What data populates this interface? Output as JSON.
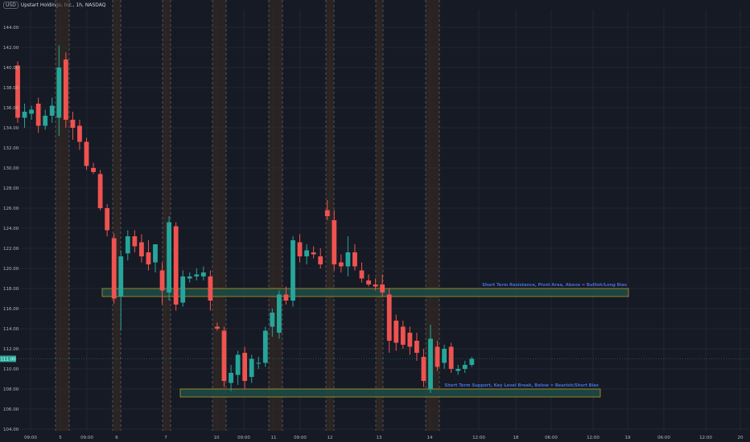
{
  "header": {
    "currency": "USD",
    "symbol": "Upstart Holdings, Inc., 1h, NASDAQ"
  },
  "colors": {
    "background": "#161a25",
    "grid": "#232733",
    "up": "#26a69a",
    "down": "#ef5350",
    "zone_fill": "#1d4a45",
    "zone_border": "#c9a227",
    "zone_text": "#3f6fd8",
    "session_shade": "#3a2e22",
    "axis_text": "#b2b5be",
    "price_label_bg": "#26a69a"
  },
  "chart_data": {
    "type": "candlestick",
    "interval": "1h",
    "ylim": [
      104,
      146
    ],
    "yticks": [
      "144.00",
      "142.00",
      "140.00",
      "138.00",
      "136.00",
      "134.00",
      "132.00",
      "130.00",
      "128.00",
      "126.00",
      "124.00",
      "122.00",
      "120.00",
      "118.00",
      "116.00",
      "114.00",
      "112.00",
      "110.00",
      "108.00",
      "106.00",
      "104.00"
    ],
    "x_ticks": [
      "09:00",
      "5",
      "09:00",
      "6",
      "7",
      "10",
      "09:00",
      "11",
      "09:00",
      "12",
      "13",
      "14",
      "12:00",
      "18",
      "06:00",
      "12:00",
      "19",
      "06:00",
      "12:00",
      "20"
    ],
    "last_price": 111.0,
    "last_price_label": "111.00",
    "grid": true,
    "candles": [
      {
        "o": 140.2,
        "h": 140.6,
        "l": 134.5,
        "c": 135.0
      },
      {
        "o": 135.0,
        "h": 136.4,
        "l": 134.0,
        "c": 135.6
      },
      {
        "o": 135.4,
        "h": 136.2,
        "l": 134.8,
        "c": 135.8
      },
      {
        "o": 136.4,
        "h": 137.0,
        "l": 133.5,
        "c": 134.2
      },
      {
        "o": 134.2,
        "h": 135.8,
        "l": 133.8,
        "c": 135.2
      },
      {
        "o": 135.2,
        "h": 137.0,
        "l": 134.5,
        "c": 136.2
      },
      {
        "o": 135.0,
        "h": 142.2,
        "l": 133.2,
        "c": 140.0
      },
      {
        "o": 140.8,
        "h": 141.5,
        "l": 134.0,
        "c": 134.8
      },
      {
        "o": 134.8,
        "h": 135.6,
        "l": 132.8,
        "c": 134.0
      },
      {
        "o": 134.2,
        "h": 134.8,
        "l": 131.8,
        "c": 132.6
      },
      {
        "o": 132.6,
        "h": 133.0,
        "l": 129.8,
        "c": 130.2
      },
      {
        "o": 130.0,
        "h": 130.5,
        "l": 129.4,
        "c": 129.6
      },
      {
        "o": 129.4,
        "h": 129.8,
        "l": 125.8,
        "c": 126.0
      },
      {
        "o": 126.0,
        "h": 126.4,
        "l": 123.2,
        "c": 123.8
      },
      {
        "o": 123.0,
        "h": 123.5,
        "l": 116.5,
        "c": 117.0
      },
      {
        "o": 117.2,
        "h": 121.8,
        "l": 113.8,
        "c": 121.2
      },
      {
        "o": 121.5,
        "h": 123.8,
        "l": 120.8,
        "c": 123.2
      },
      {
        "o": 123.2,
        "h": 123.8,
        "l": 121.6,
        "c": 122.2
      },
      {
        "o": 122.6,
        "h": 123.4,
        "l": 120.6,
        "c": 121.2
      },
      {
        "o": 121.6,
        "h": 122.8,
        "l": 119.8,
        "c": 120.4
      },
      {
        "o": 120.6,
        "h": 122.4,
        "l": 119.6,
        "c": 122.4
      },
      {
        "o": 119.8,
        "h": 120.6,
        "l": 116.4,
        "c": 117.8
      },
      {
        "o": 117.6,
        "h": 125.2,
        "l": 116.8,
        "c": 124.6
      },
      {
        "o": 124.2,
        "h": 124.6,
        "l": 115.8,
        "c": 116.4
      },
      {
        "o": 116.6,
        "h": 119.8,
        "l": 116.2,
        "c": 119.2
      },
      {
        "o": 119.0,
        "h": 119.6,
        "l": 118.6,
        "c": 119.2
      },
      {
        "o": 119.2,
        "h": 120.0,
        "l": 118.8,
        "c": 119.4
      },
      {
        "o": 119.2,
        "h": 120.2,
        "l": 118.8,
        "c": 119.6
      },
      {
        "o": 119.2,
        "h": 119.8,
        "l": 115.8,
        "c": 116.8
      },
      {
        "o": 114.2,
        "h": 114.6,
        "l": 113.8,
        "c": 114.0
      },
      {
        "o": 113.8,
        "h": 114.2,
        "l": 108.2,
        "c": 108.8
      },
      {
        "o": 108.6,
        "h": 110.4,
        "l": 107.8,
        "c": 109.6
      },
      {
        "o": 109.4,
        "h": 111.8,
        "l": 108.4,
        "c": 111.4
      },
      {
        "o": 111.6,
        "h": 112.2,
        "l": 108.0,
        "c": 108.8
      },
      {
        "o": 109.2,
        "h": 111.4,
        "l": 108.6,
        "c": 111.0
      },
      {
        "o": 110.6,
        "h": 111.2,
        "l": 110.0,
        "c": 110.6
      },
      {
        "o": 110.6,
        "h": 114.2,
        "l": 110.2,
        "c": 113.8
      },
      {
        "o": 114.2,
        "h": 116.0,
        "l": 113.2,
        "c": 115.6
      },
      {
        "o": 113.6,
        "h": 117.8,
        "l": 113.0,
        "c": 117.4
      },
      {
        "o": 117.4,
        "h": 118.2,
        "l": 116.4,
        "c": 116.8
      },
      {
        "o": 116.8,
        "h": 123.2,
        "l": 116.2,
        "c": 122.8
      },
      {
        "o": 122.6,
        "h": 123.4,
        "l": 120.6,
        "c": 121.2
      },
      {
        "o": 121.2,
        "h": 122.4,
        "l": 120.4,
        "c": 121.8
      },
      {
        "o": 121.6,
        "h": 122.2,
        "l": 121.0,
        "c": 121.4
      },
      {
        "o": 121.2,
        "h": 122.0,
        "l": 120.0,
        "c": 120.4
      },
      {
        "o": 125.8,
        "h": 126.8,
        "l": 124.8,
        "c": 125.2
      },
      {
        "o": 124.8,
        "h": 125.8,
        "l": 119.8,
        "c": 120.4
      },
      {
        "o": 120.6,
        "h": 121.4,
        "l": 119.6,
        "c": 120.2
      },
      {
        "o": 120.2,
        "h": 123.2,
        "l": 119.2,
        "c": 121.6
      },
      {
        "o": 121.6,
        "h": 122.4,
        "l": 119.8,
        "c": 120.2
      },
      {
        "o": 119.8,
        "h": 120.6,
        "l": 118.6,
        "c": 119.0
      },
      {
        "o": 118.8,
        "h": 119.4,
        "l": 118.2,
        "c": 118.4
      },
      {
        "o": 118.4,
        "h": 119.0,
        "l": 117.8,
        "c": 118.2
      },
      {
        "o": 118.4,
        "h": 119.4,
        "l": 117.2,
        "c": 117.6
      },
      {
        "o": 117.4,
        "h": 118.0,
        "l": 111.6,
        "c": 112.8
      },
      {
        "o": 114.8,
        "h": 115.4,
        "l": 111.8,
        "c": 112.6
      },
      {
        "o": 114.2,
        "h": 114.8,
        "l": 112.0,
        "c": 112.4
      },
      {
        "o": 113.6,
        "h": 114.2,
        "l": 111.4,
        "c": 112.2
      },
      {
        "o": 112.8,
        "h": 113.6,
        "l": 110.8,
        "c": 111.6
      },
      {
        "o": 111.2,
        "h": 112.0,
        "l": 108.2,
        "c": 108.8
      },
      {
        "o": 108.0,
        "h": 114.4,
        "l": 107.6,
        "c": 113.0
      },
      {
        "o": 112.2,
        "h": 112.8,
        "l": 109.8,
        "c": 110.2
      },
      {
        "o": 110.6,
        "h": 112.4,
        "l": 110.0,
        "c": 112.0
      },
      {
        "o": 112.2,
        "h": 112.6,
        "l": 109.6,
        "c": 110.0
      },
      {
        "o": 109.8,
        "h": 110.4,
        "l": 109.4,
        "c": 110.0
      },
      {
        "o": 110.0,
        "h": 110.8,
        "l": 109.6,
        "c": 110.4
      },
      {
        "o": 110.4,
        "h": 111.2,
        "l": 110.2,
        "c": 111.0
      }
    ],
    "zones": [
      {
        "name": "resistance",
        "top": 118.0,
        "bottom": 117.2,
        "label": "Short Term Resistance, Pivot Area, Above = Bullish/Long Bias"
      },
      {
        "name": "support",
        "top": 108.0,
        "bottom": 107.2,
        "label": "Short Term Support, Key Level Break, Below = Bearish/Short Bias"
      }
    ]
  }
}
